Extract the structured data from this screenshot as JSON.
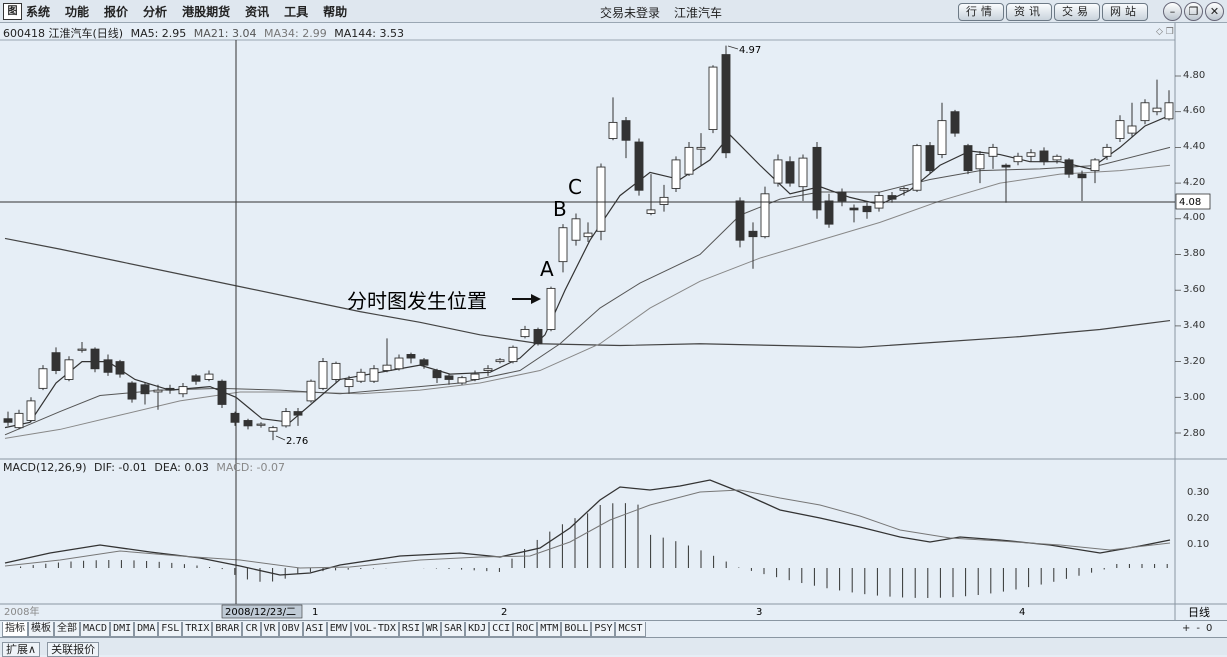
{
  "menubar": {
    "logo": "图",
    "items": [
      "系统",
      "功能",
      "报价",
      "分析",
      "港股期货",
      "资讯",
      "工具",
      "帮助"
    ],
    "status": "交易未登录",
    "stock_name": "江淮汽车",
    "buttons": [
      "行情",
      "资讯",
      "交易",
      "网站"
    ]
  },
  "info": {
    "code_name": "600418 江淮汽车(日线)",
    "ma5": "MA5: 2.95",
    "ma21": "MA21: 3.04",
    "ma34": "MA34: 2.99",
    "ma144": "MA144: 3.53"
  },
  "macd_info": {
    "label": "MACD(12,26,9)",
    "dif": "DIF: -0.01",
    "dea": "DEA: 0.03",
    "macd": "MACD: -0.07"
  },
  "price_axis": [
    "4.80",
    "4.60",
    "4.40",
    "4.20",
    "4.00",
    "3.80",
    "3.60",
    "3.40",
    "3.20",
    "3.00",
    "2.80"
  ],
  "crosshair_price": "4.08",
  "macd_axis": [
    "0.30",
    "0.20",
    "0.10"
  ],
  "annotations": {
    "high": "4.97",
    "low": "2.76",
    "label_a": "A",
    "label_b": "B",
    "label_c": "C",
    "intraday": "分时图发生位置"
  },
  "date_axis": {
    "year": "2008年",
    "cursor_date": "2008/12/23/二",
    "months": [
      "1",
      "2",
      "3",
      "4"
    ],
    "period": "日线"
  },
  "tabs": [
    "指标",
    "模板",
    "全部",
    "MACD",
    "DMI",
    "DMA",
    "FSL",
    "TRIX",
    "BRAR",
    "CR",
    "VR",
    "OBV",
    "ASI",
    "EMV",
    "VOL-TDX",
    "RSI",
    "WR",
    "SAR",
    "KDJ",
    "CCI",
    "ROC",
    "MTM",
    "BOLL",
    "PSY",
    "MCST"
  ],
  "tab_controls": [
    "+",
    "-",
    "0"
  ],
  "bottom": [
    "扩展∧",
    "关联报价"
  ],
  "colors": {
    "bg": "#e6eef6",
    "up_fill": "#ffffff",
    "down_fill": "#333333",
    "line": "#444444"
  }
}
